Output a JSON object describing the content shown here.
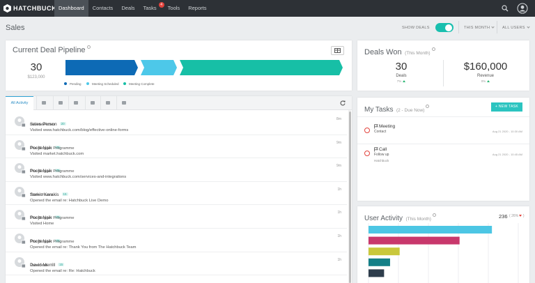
{
  "nav": {
    "logo": "HATCHBUCK",
    "items": [
      "Dashboard",
      "Contacts",
      "Deals",
      "Tasks",
      "Tools",
      "Reports"
    ],
    "tasks_badge": "4"
  },
  "header": {
    "title": "Sales",
    "show_deals": "SHOW DEALS",
    "period": "THIS MONTH",
    "users": "ALL USERS"
  },
  "pipeline": {
    "title": "Current Deal Pipeline",
    "count": "30",
    "amount": "$123,000"
  },
  "deals_won": {
    "title": "Deals Won",
    "subtitle": "(This Month)",
    "deals": "30",
    "deals_label": "Deals",
    "deals_change": "7%",
    "revenue": "$160,000",
    "revenue_label": "Revenue",
    "revenue_change": "0%"
  },
  "activity": {
    "tab": "All Activity",
    "items": [
      {
        "name": "Sales Person",
        "score": "20",
        "company": "InfusionPoints",
        "action": "Visited www.hatchbuck.com/blog/effective-online-forms",
        "time": "8m"
      },
      {
        "name": "Pooja Naik",
        "score": "75",
        "company": "The Blogger Programme",
        "action": "Visited market.hatchbuck.com",
        "time": "9m"
      },
      {
        "name": "Pooja Naik",
        "score": "75",
        "company": "The Blogger Programme",
        "action": "Visited www.hatchbuck.com/services-and-integrations",
        "time": "9m"
      },
      {
        "name": "Sarkis Karakis",
        "score": "15",
        "company": "Three Foxes",
        "action": "Opened the email re: Hatchbuck Live Demo",
        "time": "1h"
      },
      {
        "name": "Pooja Naik",
        "score": "75",
        "company": "The Blogger Programme",
        "action": "Visited Home",
        "time": "1h"
      },
      {
        "name": "Pooja Naik",
        "score": "75",
        "company": "The Blogger Programme",
        "action": "Opened the email re: Thank You from The Hatchbuck Team",
        "time": "1h"
      },
      {
        "name": "David Merrill",
        "score": "15",
        "company": "President",
        "action": "Opened the email re: Re: Hatchbuck",
        "time": "1h"
      }
    ]
  },
  "tasks": {
    "title": "My Tasks",
    "subtitle": "(2 - Due Now)",
    "button": "+ NEW TASK",
    "items": [
      {
        "type": "Meeting",
        "detail": "Contact",
        "date": "Aug 21 2020 - 10:30 AM"
      },
      {
        "type": "Call",
        "detail": "Follow up",
        "contact": "Hatchbuck",
        "date": "Aug 21 2020 - 10:45 AM"
      }
    ]
  },
  "user_activity": {
    "title": "User Activity",
    "subtitle": "(This Month)",
    "total": "236",
    "change": "26%"
  },
  "chart_data": [
    {
      "type": "stacked-bar",
      "series": [
        {
          "name": "Pending",
          "color": "#0d6ab5",
          "values": [
            8
          ]
        },
        {
          "name": "Meeting Scheduled",
          "color": "#4dc8e9",
          "values": [
            4
          ]
        },
        {
          "name": "Meeting Complete",
          "color": "#17bfa6",
          "values": [
            18
          ]
        }
      ]
    },
    {
      "type": "bar",
      "categories": [
        null,
        null,
        null,
        null,
        null
      ],
      "values": [
        103,
        76,
        26,
        18,
        13
      ],
      "colors": [
        "#4cc6e4",
        "#c8386c",
        "#c9c83c",
        "#137f87",
        "#2e3d4c"
      ]
    }
  ]
}
